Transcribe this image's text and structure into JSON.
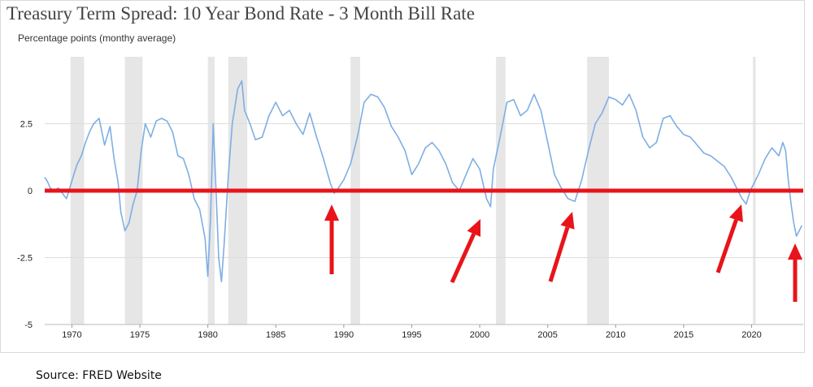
{
  "chart_data": {
    "type": "line",
    "title": "Treasury Term Spread: 10 Year Bond Rate - 3 Month Bill Rate",
    "subtitle": "Percentage points (monthy average)",
    "source": "Source: FRED Website",
    "xlim": [
      1968.0,
      2023.8
    ],
    "ylim": [
      -5,
      5
    ],
    "y_ticks": [
      {
        "value": 2.5,
        "label": "2.5"
      },
      {
        "value": 0,
        "label": "0"
      },
      {
        "value": -2.5,
        "label": "-2.5"
      },
      {
        "value": -5,
        "label": "-5"
      }
    ],
    "x_ticks": [
      {
        "value": 1970,
        "label": "1970"
      },
      {
        "value": 1975,
        "label": "1975"
      },
      {
        "value": 1980,
        "label": "1980"
      },
      {
        "value": 1985,
        "label": "1985"
      },
      {
        "value": 1990,
        "label": "1990"
      },
      {
        "value": 1995,
        "label": "1995"
      },
      {
        "value": 2000,
        "label": "2000"
      },
      {
        "value": 2005,
        "label": "2005"
      },
      {
        "value": 2010,
        "label": "2010"
      },
      {
        "value": 2015,
        "label": "2015"
      },
      {
        "value": 2020,
        "label": "2020"
      }
    ],
    "grid": true,
    "recessions": [
      [
        1969.9,
        1970.9
      ],
      [
        1973.9,
        1975.2
      ],
      [
        1980.0,
        1980.5
      ],
      [
        1981.5,
        1982.9
      ],
      [
        1990.5,
        1991.2
      ],
      [
        2001.2,
        2001.9
      ],
      [
        2007.9,
        2009.5
      ],
      [
        2020.1,
        2020.3
      ]
    ],
    "series": [
      {
        "color": "#7eaee3",
        "x": [
          1968.0,
          1968.2,
          1968.4,
          1968.7,
          1969.0,
          1969.3,
          1969.6,
          1969.9,
          1970.2,
          1970.4,
          1970.7,
          1971.0,
          1971.3,
          1971.6,
          1972.0,
          1972.4,
          1972.8,
          1973.1,
          1973.4,
          1973.6,
          1973.9,
          1974.2,
          1974.5,
          1974.8,
          1975.1,
          1975.4,
          1975.8,
          1976.2,
          1976.6,
          1977.0,
          1977.4,
          1977.8,
          1978.2,
          1978.6,
          1979.0,
          1979.4,
          1979.8,
          1980.0,
          1980.2,
          1980.4,
          1980.6,
          1980.8,
          1981.0,
          1981.2,
          1981.5,
          1981.8,
          1982.2,
          1982.5,
          1982.7,
          1983.1,
          1983.5,
          1984.0,
          1984.5,
          1985.0,
          1985.5,
          1986.0,
          1986.5,
          1987.0,
          1987.5,
          1988.0,
          1988.5,
          1989.0,
          1989.3,
          1989.6,
          1990.0,
          1990.5,
          1991.0,
          1991.5,
          1992.0,
          1992.5,
          1993.0,
          1993.5,
          1994.0,
          1994.5,
          1995.0,
          1995.5,
          1996.0,
          1996.5,
          1997.0,
          1997.5,
          1998.0,
          1998.5,
          1999.0,
          1999.5,
          2000.0,
          2000.5,
          2000.8,
          2001.0,
          2001.5,
          2002.0,
          2002.5,
          2003.0,
          2003.5,
          2004.0,
          2004.5,
          2005.0,
          2005.5,
          2006.0,
          2006.5,
          2007.0,
          2007.5,
          2008.0,
          2008.5,
          2009.0,
          2009.5,
          2010.0,
          2010.5,
          2011.0,
          2011.5,
          2012.0,
          2012.5,
          2013.0,
          2013.5,
          2014.0,
          2014.5,
          2015.0,
          2015.5,
          2016.0,
          2016.5,
          2017.0,
          2017.5,
          2018.0,
          2018.5,
          2019.0,
          2019.3,
          2019.6,
          2019.9,
          2020.2,
          2020.5,
          2021.0,
          2021.5,
          2022.0,
          2022.3,
          2022.5,
          2022.7,
          2022.9,
          2023.1,
          2023.3,
          2023.5,
          2023.7
        ],
        "values": [
          0.5,
          0.35,
          0.1,
          0.0,
          0.1,
          -0.1,
          -0.3,
          0.2,
          0.7,
          1.0,
          1.3,
          1.8,
          2.2,
          2.5,
          2.7,
          1.7,
          2.4,
          1.2,
          0.3,
          -0.8,
          -1.5,
          -1.2,
          -0.5,
          0.0,
          1.5,
          2.5,
          2.0,
          2.6,
          2.7,
          2.6,
          2.2,
          1.3,
          1.2,
          0.6,
          -0.3,
          -0.7,
          -1.8,
          -3.2,
          -1.0,
          2.5,
          0.0,
          -2.5,
          -3.4,
          -2.0,
          0.5,
          2.5,
          3.8,
          4.1,
          3.0,
          2.5,
          1.9,
          2.0,
          2.8,
          3.3,
          2.8,
          3.0,
          2.5,
          2.1,
          2.9,
          2.0,
          1.2,
          0.3,
          -0.1,
          0.1,
          0.4,
          1.0,
          2.0,
          3.3,
          3.6,
          3.5,
          3.1,
          2.4,
          2.0,
          1.5,
          0.6,
          1.0,
          1.6,
          1.8,
          1.5,
          1.0,
          0.3,
          0.0,
          0.6,
          1.2,
          0.8,
          -0.3,
          -0.6,
          0.8,
          2.0,
          3.3,
          3.4,
          2.8,
          3.0,
          3.6,
          3.0,
          1.8,
          0.6,
          0.1,
          -0.3,
          -0.4,
          0.4,
          1.5,
          2.5,
          2.9,
          3.5,
          3.4,
          3.2,
          3.6,
          3.0,
          2.0,
          1.6,
          1.8,
          2.7,
          2.8,
          2.4,
          2.1,
          2.0,
          1.7,
          1.4,
          1.3,
          1.1,
          0.9,
          0.5,
          0.0,
          -0.3,
          -0.5,
          0.0,
          0.3,
          0.6,
          1.2,
          1.6,
          1.3,
          1.8,
          1.5,
          0.4,
          -0.5,
          -1.2,
          -1.7,
          -1.5,
          -1.3
        ]
      }
    ]
  },
  "annotations": {
    "zero_line_color": "#e8141a",
    "arrow_color": "#e8141a"
  }
}
